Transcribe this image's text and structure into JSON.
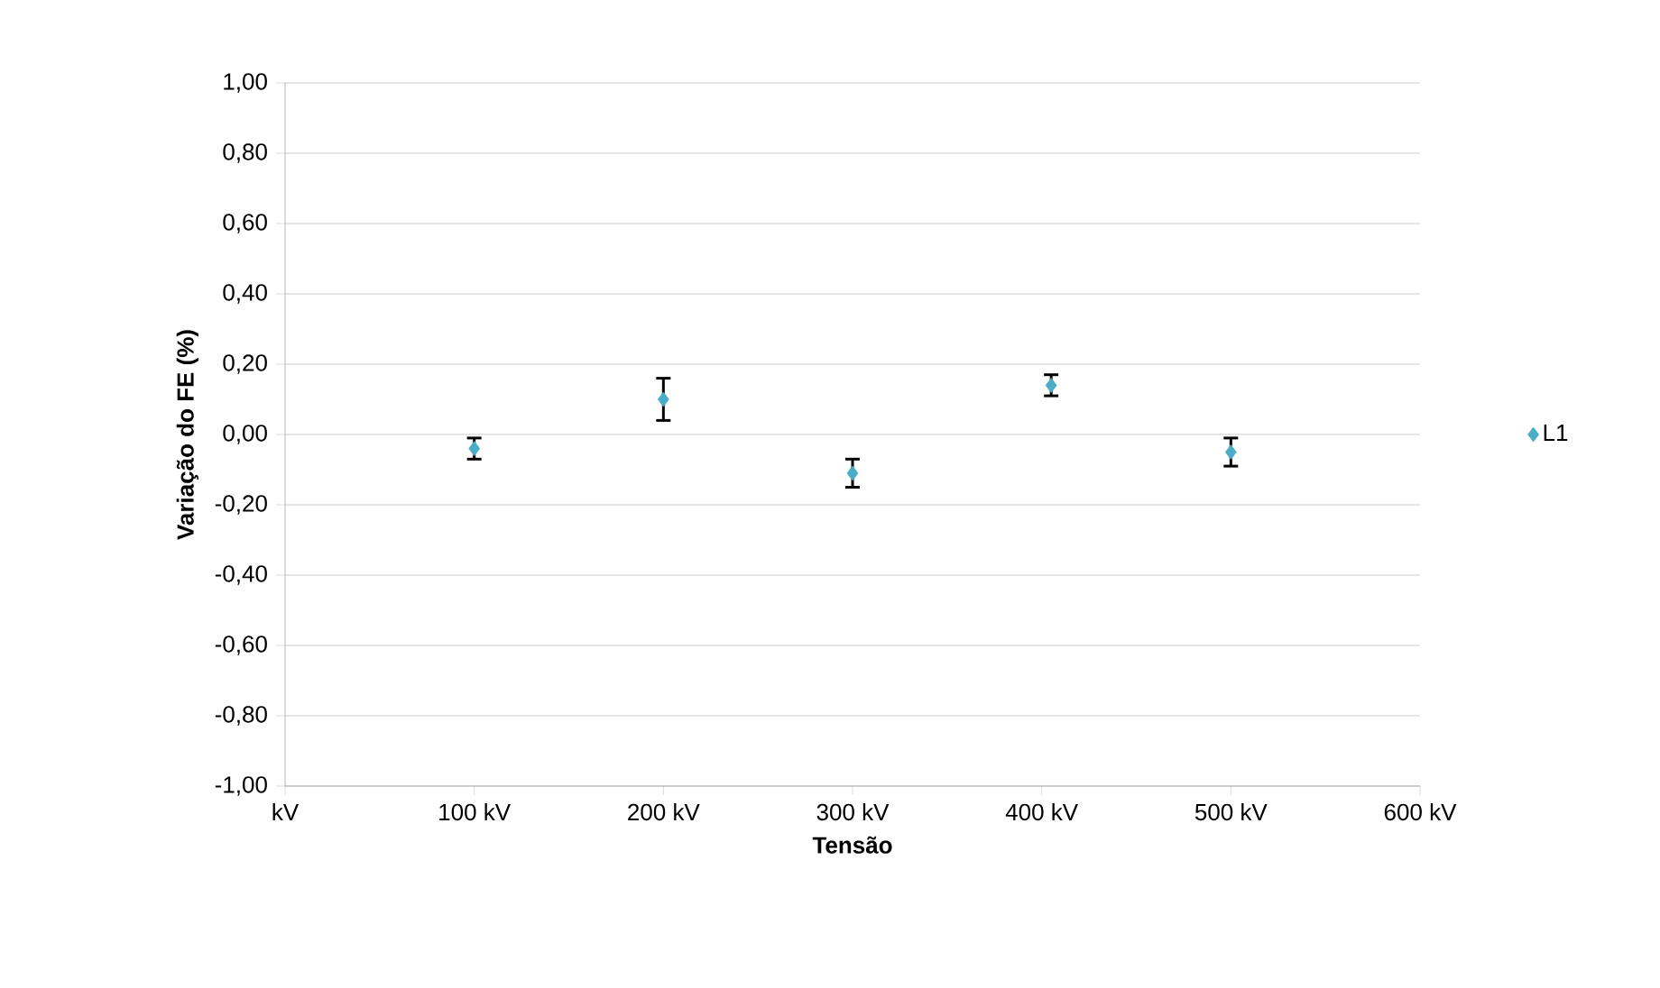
{
  "chart_data": {
    "type": "scatter",
    "xlabel": "Tensão",
    "ylabel": "Variação do FE (%)",
    "x": [
      100,
      200,
      300,
      405,
      500
    ],
    "series": [
      {
        "name": "L1",
        "color": "#4bacc6",
        "values": [
          -0.04,
          0.1,
          -0.11,
          0.14,
          -0.05
        ],
        "errors": [
          0.03,
          0.06,
          0.04,
          0.03,
          0.04
        ]
      }
    ],
    "xlim": [
      0,
      600
    ],
    "ylim": [
      -1,
      1
    ],
    "xticks": [
      {
        "value": 0,
        "label": "kV"
      },
      {
        "value": 100,
        "label": "100 kV"
      },
      {
        "value": 200,
        "label": "200 kV"
      },
      {
        "value": 300,
        "label": "300 kV"
      },
      {
        "value": 400,
        "label": "400 kV"
      },
      {
        "value": 500,
        "label": "500 kV"
      },
      {
        "value": 600,
        "label": "600 kV"
      }
    ],
    "yticks": [
      {
        "value": -1,
        "label": "-1,00"
      },
      {
        "value": -0.8,
        "label": "-0,80"
      },
      {
        "value": -0.6,
        "label": "-0,60"
      },
      {
        "value": -0.4,
        "label": "-0,40"
      },
      {
        "value": -0.2,
        "label": "-0,20"
      },
      {
        "value": 0,
        "label": "0,00"
      },
      {
        "value": 0.2,
        "label": "0,20"
      },
      {
        "value": 0.4,
        "label": "0,40"
      },
      {
        "value": 0.6,
        "label": "0,60"
      },
      {
        "value": 0.8,
        "label": "0,80"
      },
      {
        "value": 1,
        "label": "1,00"
      }
    ],
    "grid": "y",
    "legend": "right",
    "marker": "diamond"
  }
}
